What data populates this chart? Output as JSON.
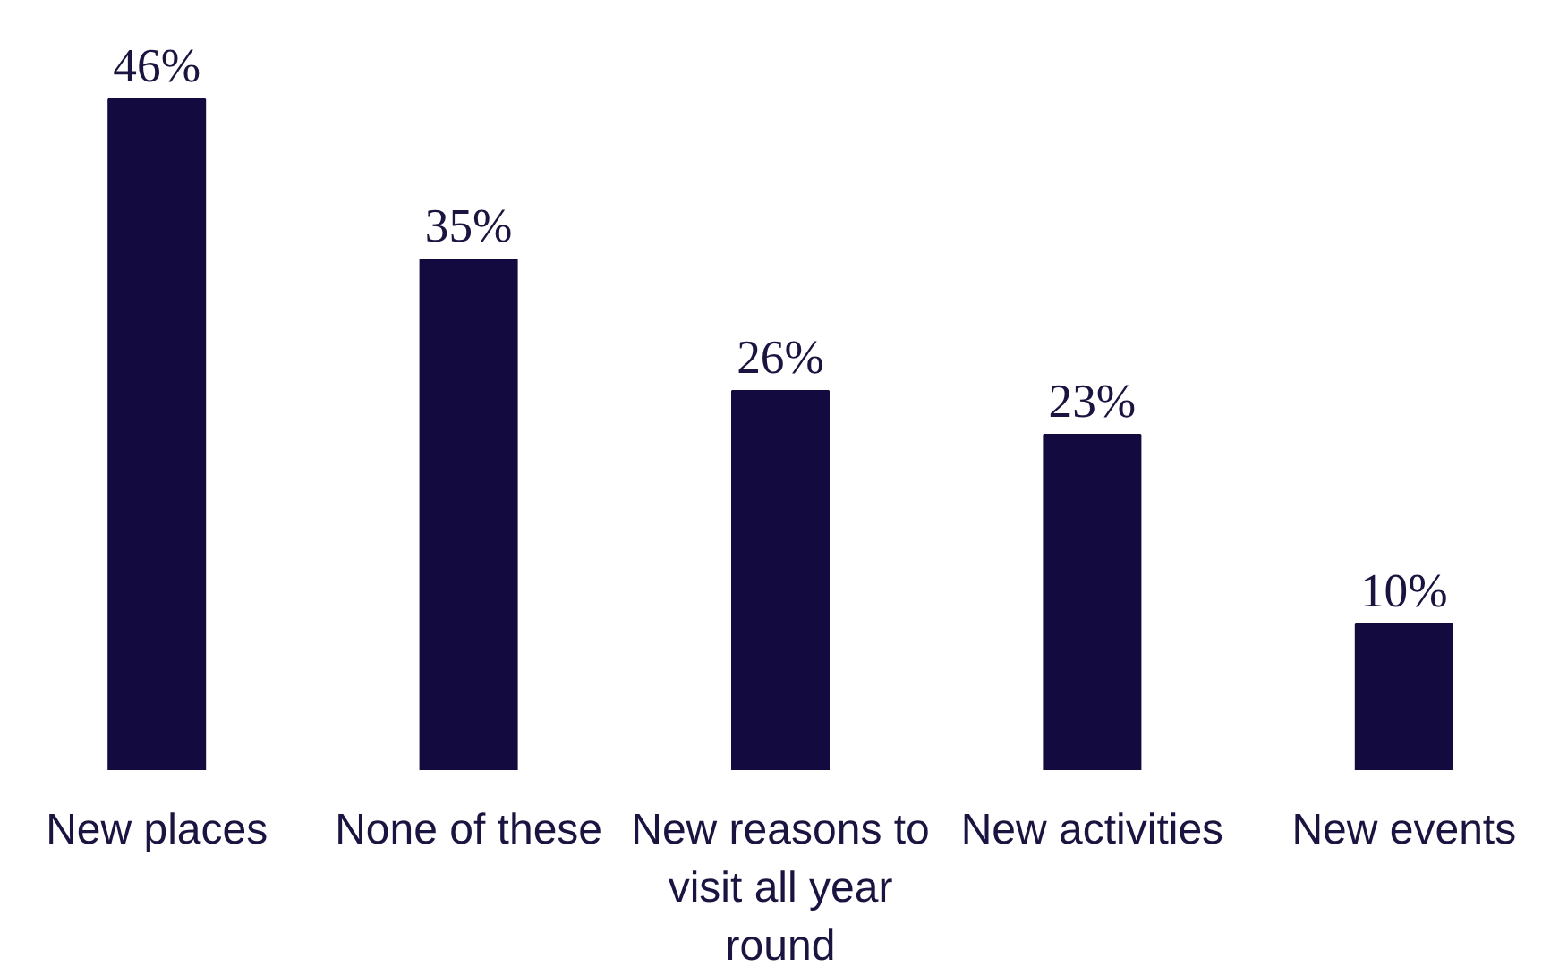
{
  "chart_data": {
    "type": "bar",
    "categories": [
      "New places",
      "None of these",
      "New reasons to visit all year round",
      "New activities",
      "New events"
    ],
    "values": [
      46,
      35,
      26,
      23,
      10
    ],
    "value_labels": [
      "46%",
      "35%",
      "26%",
      "23%",
      "10%"
    ],
    "color": "#130a40",
    "grid": false,
    "tick_labels": "x"
  }
}
